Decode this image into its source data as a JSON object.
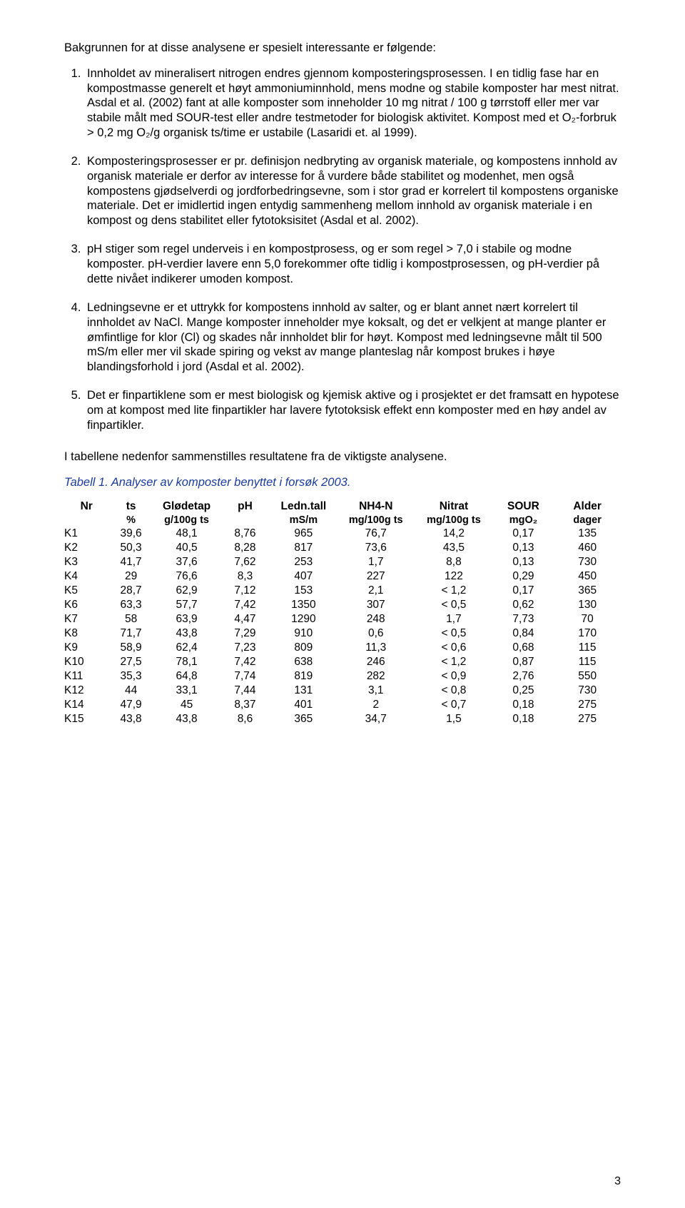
{
  "intro": "Bakgrunnen for at disse analysene er spesielt interessante er følgende:",
  "list_items": [
    "Innholdet av mineralisert nitrogen endres gjennom komposteringsprosessen. I en tidlig fase har en kompostmasse generelt et høyt ammoniuminnhold, mens modne og stabile komposter har mest nitrat. Asdal et al. (2002) fant at alle komposter som inneholder 10 mg nitrat / 100 g tørrstoff eller mer var stabile målt med SOUR-test eller andre testmetoder for biologisk aktivitet. Kompost med et O₂-forbruk > 0,2 mg O₂/g organisk ts/time er ustabile (Lasaridi et. al 1999).",
    "Komposteringsprosesser er pr. definisjon nedbryting av organisk materiale, og kompostens innhold av organisk materiale er derfor av interesse for å vurdere både stabilitet og modenhet, men også kompostens gjødselverdi og jordforbedringsevne, som i stor grad er korrelert til kompostens organiske materiale. Det er imidlertid ingen entydig sammenheng mellom innhold av organisk materiale i en kompost og dens stabilitet eller fytotoksisitet (Asdal et al. 2002).",
    "pH stiger som regel underveis i en kompostprosess, og er som regel > 7,0 i stabile og modne komposter. pH-verdier lavere enn 5,0 forekommer ofte tidlig i kompostprosessen, og pH-verdier på dette nivået indikerer umoden kompost.",
    "Ledningsevne er et uttrykk for kompostens innhold av salter, og er blant annet nært korrelert til innholdet av NaCl. Mange komposter inneholder mye koksalt, og det er velkjent at mange planter er ømfintlige for klor (Cl) og skades når innholdet blir for høyt. Kompost med ledningsevne målt til 500 mS/m eller mer vil skade spiring og vekst av mange planteslag når kompost brukes i høye blandingsforhold i jord (Asdal et al. 2002).",
    "Det er finpartiklene som er mest biologisk og kjemisk aktive og i prosjektet er det framsatt en hypotese om at kompost med lite finpartikler har lavere fytotoksisk effekt enn komposter med en høy andel av finpartikler."
  ],
  "table_intro": "I tabellene nedenfor sammenstilles resultatene fra de viktigste analysene.",
  "table_caption": "Tabell 1. Analyser av komposter benyttet i forsøk 2003.",
  "table": {
    "headers_row1": [
      "Nr",
      "ts",
      "Glødetap",
      "pH",
      "Ledn.tall",
      "NH4-N",
      "Nitrat",
      "SOUR",
      "Alder"
    ],
    "headers_row2": [
      "",
      "%",
      "g/100g ts",
      "",
      "mS/m",
      "mg/100g ts",
      "mg/100g ts",
      "mgO₂",
      "dager"
    ],
    "col_widths": [
      "8%",
      "8%",
      "12%",
      "9%",
      "12%",
      "14%",
      "14%",
      "11%",
      "12%"
    ],
    "rows": [
      [
        "K1",
        "39,6",
        "48,1",
        "8,76",
        "965",
        "76,7",
        "14,2",
        "0,17",
        "135"
      ],
      [
        "K2",
        "50,3",
        "40,5",
        "8,28",
        "817",
        "73,6",
        "43,5",
        "0,13",
        "460"
      ],
      [
        "K3",
        "41,7",
        "37,6",
        "7,62",
        "253",
        "1,7",
        "8,8",
        "0,13",
        "730"
      ],
      [
        "K4",
        "29",
        "76,6",
        "8,3",
        "407",
        "227",
        "122",
        "0,29",
        "450"
      ],
      [
        "K5",
        "28,7",
        "62,9",
        "7,12",
        "153",
        "2,1",
        "< 1,2",
        "0,17",
        "365"
      ],
      [
        "K6",
        "63,3",
        "57,7",
        "7,42",
        "1350",
        "307",
        "< 0,5",
        "0,62",
        "130"
      ],
      [
        "K7",
        "58",
        "63,9",
        "4,47",
        "1290",
        "248",
        "1,7",
        "7,73",
        "70"
      ],
      [
        "K8",
        "71,7",
        "43,8",
        "7,29",
        "910",
        "0,6",
        "< 0,5",
        "0,84",
        "170"
      ],
      [
        "K9",
        "58,9",
        "62,4",
        "7,23",
        "809",
        "11,3",
        "< 0,6",
        "0,68",
        "115"
      ],
      [
        "K10",
        "27,5",
        "78,1",
        "7,42",
        "638",
        "246",
        "< 1,2",
        "0,87",
        "115"
      ],
      [
        "K11",
        "35,3",
        "64,8",
        "7,74",
        "819",
        "282",
        "< 0,9",
        "2,76",
        "550"
      ],
      [
        "K12",
        "44",
        "33,1",
        "7,44",
        "131",
        "3,1",
        "< 0,8",
        "0,25",
        "730"
      ],
      [
        "K14",
        "47,9",
        "45",
        "8,37",
        "401",
        "2",
        "< 0,7",
        "0,18",
        "275"
      ],
      [
        "K15",
        "43,8",
        "43,8",
        "8,6",
        "365",
        "34,7",
        "1,5",
        "0,18",
        "275"
      ]
    ]
  },
  "page_number": "3",
  "colors": {
    "text": "#000000",
    "caption": "#1a3b99",
    "background": "#ffffff"
  }
}
